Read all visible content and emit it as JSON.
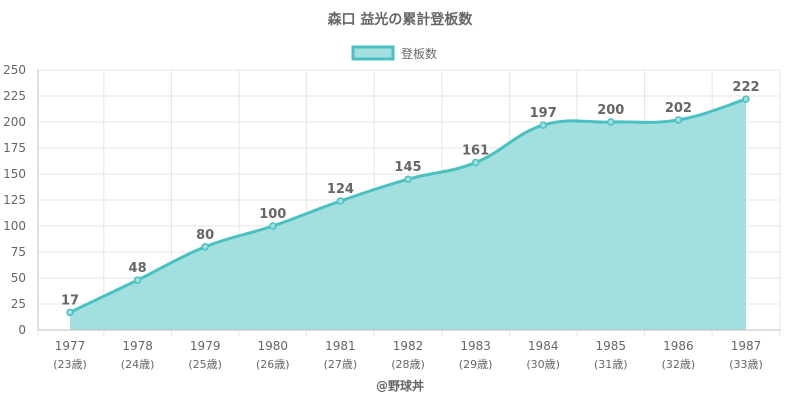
{
  "chart_data": {
    "type": "area",
    "title": "森口 益光の累計登板数",
    "x": [
      "1977",
      "1978",
      "1979",
      "1980",
      "1981",
      "1982",
      "1983",
      "1984",
      "1985",
      "1986",
      "1987"
    ],
    "x_sub": [
      "(23歳)",
      "(24歳)",
      "(25歳)",
      "(26歳)",
      "(27歳)",
      "(28歳)",
      "(29歳)",
      "(30歳)",
      "(31歳)",
      "(32歳)",
      "(33歳)"
    ],
    "series": [
      {
        "name": "登板数",
        "values": [
          17,
          48,
          80,
          100,
          124,
          145,
          161,
          197,
          200,
          202,
          222
        ]
      }
    ],
    "ylim": [
      0,
      250
    ],
    "yticks": [
      0,
      25,
      50,
      75,
      100,
      125,
      150,
      175,
      200,
      225,
      250
    ],
    "grid": true,
    "legend": "top-center",
    "colors": {
      "line": "#4bc0c0",
      "fill": "#a3dfdf"
    }
  },
  "credit": "@野球丼"
}
